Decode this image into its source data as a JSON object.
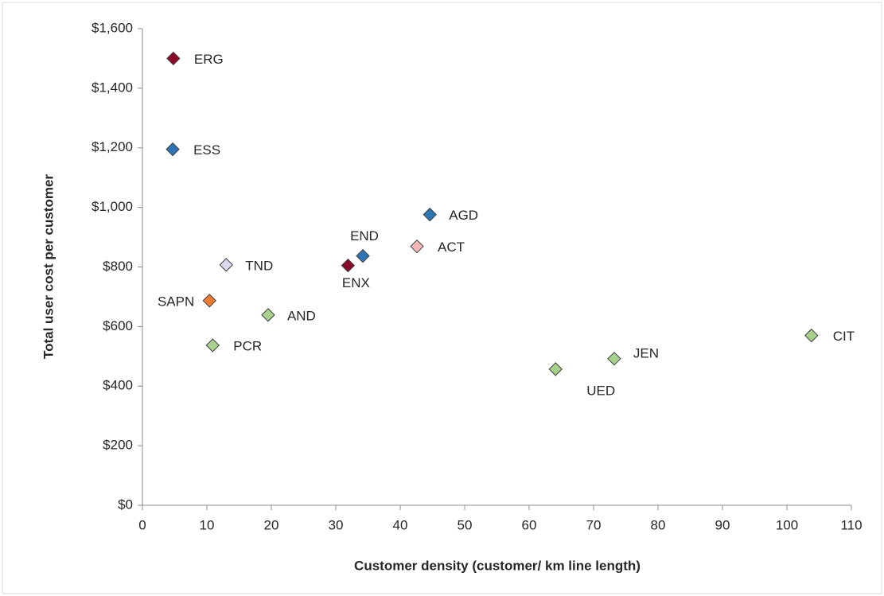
{
  "chart_data": {
    "type": "scatter",
    "x_label": "Customer density (customer/ km line length)",
    "y_label": "Total user cost  per customer",
    "xlim": [
      0,
      110
    ],
    "xticks": [
      0,
      10,
      20,
      30,
      40,
      50,
      60,
      70,
      80,
      90,
      100,
      110
    ],
    "ylim": [
      0,
      1600
    ],
    "yticks": [
      {
        "value": 0,
        "label": "$0"
      },
      {
        "value": 200,
        "label": "$200"
      },
      {
        "value": 400,
        "label": "$400"
      },
      {
        "value": 600,
        "label": "$600"
      },
      {
        "value": 800,
        "label": "$800"
      },
      {
        "value": 1000,
        "label": "$1,000"
      },
      {
        "value": 1200,
        "label": "$1,200"
      },
      {
        "value": 1400,
        "label": "$1,400"
      },
      {
        "value": 1600,
        "label": "$1,600"
      }
    ],
    "grid": false,
    "points": [
      {
        "label": "ERG",
        "x": 4.8,
        "y": 1500,
        "color": "#8b0a2a"
      },
      {
        "label": "ESS",
        "x": 4.7,
        "y": 1195,
        "color": "#2e75b6"
      },
      {
        "label": "AGD",
        "x": 44.6,
        "y": 976,
        "color": "#2e75b6"
      },
      {
        "label": "END",
        "x": 34.2,
        "y": 837,
        "color": "#2e75b6"
      },
      {
        "label": "ACT",
        "x": 42.6,
        "y": 869,
        "color": "#f4b8b8"
      },
      {
        "label": "ENX",
        "x": 31.9,
        "y": 805,
        "color": "#8b0a2a"
      },
      {
        "label": "TND",
        "x": 13.0,
        "y": 807,
        "color": "#dcd8ee"
      },
      {
        "label": "SAPN",
        "x": 10.4,
        "y": 687,
        "color": "#ed7d31"
      },
      {
        "label": "AND",
        "x": 19.5,
        "y": 639,
        "color": "#a9d18e"
      },
      {
        "label": "PCR",
        "x": 10.9,
        "y": 537,
        "color": "#a9d18e"
      },
      {
        "label": "UED",
        "x": 64.1,
        "y": 457,
        "color": "#a9d18e"
      },
      {
        "label": "JEN",
        "x": 73.2,
        "y": 492,
        "color": "#a9d18e"
      },
      {
        "label": "CIT",
        "x": 103.8,
        "y": 570,
        "color": "#a9d18e"
      }
    ]
  }
}
